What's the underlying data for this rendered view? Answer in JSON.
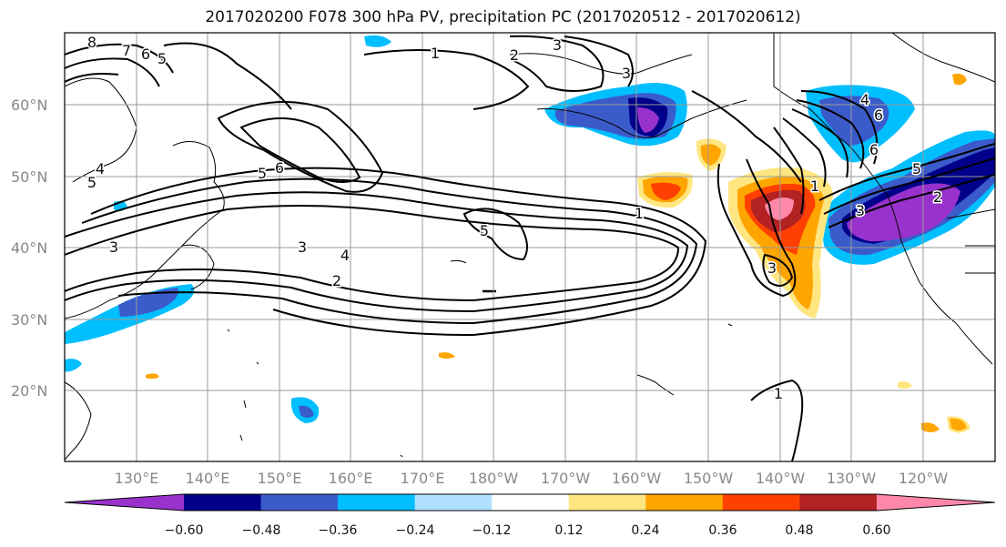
{
  "title": "2017020200 F078 300 hPa PV, precipitation PC (2017020512 - 2017020612)",
  "lat_labels": [
    "60°N",
    "50°N",
    "40°N",
    "30°N",
    "20°N"
  ],
  "lon_labels": [
    "130°E",
    "140°E",
    "150°E",
    "160°E",
    "170°E",
    "180°W",
    "170°W",
    "160°W",
    "150°W",
    "140°W",
    "130°W",
    "120°W"
  ],
  "contour_labels": [
    "8",
    "7",
    "6",
    "5",
    "1",
    "2",
    "3",
    "3",
    "1",
    "5",
    "6",
    "4",
    "5",
    "3",
    "4",
    "2",
    "5",
    "1",
    "6",
    "4",
    "5",
    "3",
    "2",
    "3",
    "1",
    "6",
    "3"
  ],
  "colorbar": {
    "ticks": [
      "−0.60",
      "−0.48",
      "−0.36",
      "−0.24",
      "−0.12",
      "0.12",
      "0.24",
      "0.36",
      "0.48",
      "0.60"
    ],
    "colors": [
      "#9932CC",
      "#00008B",
      "#3B5BCB",
      "#00BFFF",
      "#B0E2FF",
      "#FFFFFF",
      "#FFE680",
      "#FFA500",
      "#FF4000",
      "#B22222",
      "#FF88AA"
    ]
  }
}
